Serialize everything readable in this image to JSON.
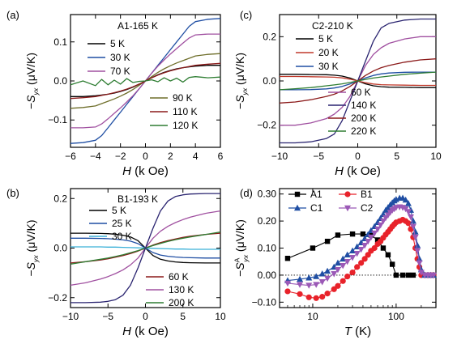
{
  "panel_d_markers": {
    "A1": "square",
    "B1": "circle",
    "C1": "triangle-up",
    "C2": "triangle-down"
  },
  "chart_data": [
    {
      "type": "line",
      "panel_label": "(a)",
      "title": "A1-165 K",
      "xlabel": "H (k Oe)",
      "ylabel": "−S_yx (μV/K)",
      "xlim": [
        -6,
        6
      ],
      "ylim": [
        -0.17,
        0.17
      ],
      "xticks": [
        -6,
        -4,
        -2,
        0,
        2,
        4,
        6
      ],
      "yticks": [
        -0.1,
        0.0,
        0.1
      ],
      "xtick_labels": [
        "−6",
        "−4",
        "−2",
        "0",
        "2",
        "4",
        "6"
      ],
      "ytick_labels": [
        "−0.1",
        "0.0",
        "0.1"
      ],
      "x": [
        -6,
        -5,
        -4,
        -3.5,
        -3,
        -2.5,
        -2,
        -1.5,
        -1,
        -0.5,
        0,
        0.5,
        1,
        1.5,
        2,
        2.5,
        3,
        3.5,
        4,
        5,
        6
      ],
      "series": [
        {
          "name": "5 K",
          "color": "#000000",
          "values": [
            -0.04,
            -0.04,
            -0.038,
            -0.036,
            -0.034,
            -0.031,
            -0.027,
            -0.022,
            -0.016,
            -0.008,
            0.0,
            0.008,
            0.016,
            0.022,
            0.027,
            0.031,
            0.034,
            0.036,
            0.038,
            0.04,
            0.04
          ]
        },
        {
          "name": "30 K",
          "color": "#1f4ea3",
          "values": [
            -0.16,
            -0.158,
            -0.152,
            -0.14,
            -0.12,
            -0.1,
            -0.08,
            -0.06,
            -0.04,
            -0.02,
            0.0,
            0.02,
            0.04,
            0.06,
            0.08,
            0.1,
            0.12,
            0.14,
            0.152,
            0.158,
            0.16
          ]
        },
        {
          "name": "70 K",
          "color": "#a050a0",
          "values": [
            -0.12,
            -0.12,
            -0.118,
            -0.11,
            -0.097,
            -0.083,
            -0.069,
            -0.054,
            -0.038,
            -0.02,
            0.0,
            0.02,
            0.038,
            0.054,
            0.069,
            0.083,
            0.097,
            0.11,
            0.118,
            0.12,
            0.12
          ]
        },
        {
          "name": "90 K",
          "color": "#6e6e2a",
          "values": [
            -0.07,
            -0.068,
            -0.064,
            -0.058,
            -0.052,
            -0.046,
            -0.039,
            -0.031,
            -0.022,
            -0.011,
            0.0,
            0.011,
            0.022,
            0.031,
            0.039,
            0.046,
            0.052,
            0.058,
            0.064,
            0.068,
            0.07
          ]
        },
        {
          "name": "110 K",
          "color": "#8b1a1a",
          "values": [
            -0.045,
            -0.043,
            -0.04,
            -0.037,
            -0.034,
            -0.03,
            -0.026,
            -0.021,
            -0.015,
            -0.008,
            0.0,
            0.008,
            0.015,
            0.021,
            0.026,
            0.03,
            0.034,
            0.037,
            0.04,
            0.043,
            0.045
          ]
        },
        {
          "name": "120 K",
          "color": "#2e7d32",
          "values": [
            -0.01,
            0.0,
            -0.012,
            0.004,
            -0.01,
            0.002,
            -0.008,
            0.006,
            -0.004,
            -0.001,
            0.0,
            0.003,
            -0.002,
            0.008,
            0.0,
            0.007,
            -0.003,
            0.009,
            0.011,
            0.008,
            0.01
          ]
        }
      ]
    },
    {
      "type": "line",
      "panel_label": "(b)",
      "title": "B1-193 K",
      "xlabel": "H (k Oe)",
      "ylabel": "−S_yx (μV/K)",
      "xlim": [
        -10,
        10
      ],
      "ylim": [
        -0.24,
        0.24
      ],
      "xticks": [
        -10,
        -5,
        0,
        5,
        10
      ],
      "yticks": [
        -0.2,
        0.0,
        0.2
      ],
      "xtick_labels": [
        "−10",
        "−5",
        "0",
        "5",
        "10"
      ],
      "ytick_labels": [
        "−0.2",
        "0.0",
        "0.2"
      ],
      "x": [
        -10,
        -8,
        -6,
        -5,
        -4,
        -3,
        -2,
        -1,
        0,
        1,
        2,
        3,
        4,
        5,
        6,
        8,
        10
      ],
      "series": [
        {
          "name": "5 K",
          "color": "#000000",
          "values": [
            0.06,
            0.06,
            0.059,
            0.058,
            0.056,
            0.052,
            0.045,
            0.03,
            0.0,
            -0.03,
            -0.045,
            -0.052,
            -0.056,
            -0.058,
            -0.059,
            -0.06,
            -0.06
          ]
        },
        {
          "name": "25 K",
          "color": "#1f4ea3",
          "values": [
            0.04,
            0.04,
            0.039,
            0.038,
            0.036,
            0.033,
            0.028,
            0.018,
            0.0,
            -0.018,
            -0.028,
            -0.033,
            -0.036,
            -0.038,
            -0.039,
            -0.04,
            -0.04
          ]
        },
        {
          "name": "30 K",
          "color": "#3ab0d8",
          "values": [
            0.005,
            0.005,
            0.005,
            0.004,
            0.004,
            0.003,
            0.002,
            0.001,
            0.0,
            -0.001,
            -0.002,
            -0.003,
            -0.004,
            -0.004,
            -0.005,
            -0.005,
            -0.005
          ]
        },
        {
          "name": "60 K",
          "color": "#8b1a1a",
          "values": [
            -0.06,
            -0.055,
            -0.048,
            -0.043,
            -0.037,
            -0.03,
            -0.022,
            -0.012,
            0.0,
            0.012,
            0.022,
            0.03,
            0.037,
            0.043,
            0.048,
            0.055,
            0.06
          ]
        },
        {
          "name": "130 K",
          "color": "#a050a0",
          "values": [
            -0.15,
            -0.14,
            -0.125,
            -0.115,
            -0.103,
            -0.088,
            -0.068,
            -0.04,
            0.0,
            0.04,
            0.068,
            0.088,
            0.103,
            0.115,
            0.125,
            0.14,
            0.15
          ]
        },
        {
          "name": "200 K",
          "color": "#2e7d32",
          "values": [
            -0.065,
            -0.055,
            -0.045,
            -0.04,
            -0.034,
            -0.027,
            -0.019,
            -0.01,
            0.0,
            0.01,
            0.019,
            0.027,
            0.034,
            0.04,
            0.045,
            0.055,
            0.065
          ]
        },
        {
          "name": "",
          "color": "#2a2470",
          "values": [
            -0.22,
            -0.22,
            -0.218,
            -0.215,
            -0.208,
            -0.19,
            -0.15,
            -0.08,
            0.0,
            0.08,
            0.15,
            0.19,
            0.208,
            0.215,
            0.218,
            0.22,
            0.22
          ]
        }
      ]
    },
    {
      "type": "line",
      "panel_label": "(c)",
      "title": "C2-210 K",
      "xlabel": "H (k Oe)",
      "ylabel": "−S_yx (μV/K)",
      "xlim": [
        -10,
        10
      ],
      "ylim": [
        -0.3,
        0.3
      ],
      "xticks": [
        -10,
        -5,
        0,
        5,
        10
      ],
      "yticks": [
        -0.2,
        0.0,
        0.2
      ],
      "xtick_labels": [
        "−10",
        "−5",
        "0",
        "5",
        "10"
      ],
      "ytick_labels": [
        "−0.2",
        "0.0",
        "0.2"
      ],
      "x": [
        -10,
        -8,
        -6,
        -4,
        -3,
        -2,
        -1,
        0,
        1,
        2,
        3,
        4,
        6,
        8,
        10
      ],
      "series": [
        {
          "name": "5 K",
          "color": "#000000",
          "values": [
            0.03,
            0.03,
            0.029,
            0.028,
            0.026,
            0.022,
            0.013,
            0.0,
            -0.013,
            -0.022,
            -0.026,
            -0.028,
            -0.029,
            -0.03,
            -0.03
          ]
        },
        {
          "name": "20 K",
          "color": "#c0392b",
          "values": [
            0.02,
            0.02,
            0.019,
            0.018,
            0.017,
            0.014,
            0.008,
            0.0,
            -0.008,
            -0.014,
            -0.017,
            -0.018,
            -0.019,
            -0.02,
            -0.02
          ]
        },
        {
          "name": "30 K",
          "color": "#1f4ea3",
          "values": [
            -0.04,
            -0.04,
            -0.039,
            -0.036,
            -0.032,
            -0.025,
            -0.014,
            0.0,
            0.014,
            0.025,
            0.032,
            0.036,
            0.039,
            0.04,
            0.04
          ]
        },
        {
          "name": "60 K",
          "color": "#a050a0",
          "values": [
            -0.2,
            -0.2,
            -0.19,
            -0.17,
            -0.15,
            -0.12,
            -0.07,
            0.0,
            0.07,
            0.12,
            0.15,
            0.17,
            0.19,
            0.2,
            0.2
          ]
        },
        {
          "name": "140 K",
          "color": "#2a2470",
          "values": [
            -0.28,
            -0.28,
            -0.275,
            -0.26,
            -0.24,
            -0.18,
            -0.09,
            0.0,
            0.09,
            0.18,
            0.24,
            0.26,
            0.275,
            0.28,
            0.28
          ]
        },
        {
          "name": "200 K",
          "color": "#8b1a1a",
          "values": [
            -0.1,
            -0.095,
            -0.085,
            -0.07,
            -0.06,
            -0.045,
            -0.025,
            0.0,
            0.025,
            0.045,
            0.06,
            0.07,
            0.085,
            0.095,
            0.1
          ]
        },
        {
          "name": "220 K",
          "color": "#2e7d32",
          "values": [
            -0.04,
            -0.035,
            -0.03,
            -0.022,
            -0.018,
            -0.013,
            -0.007,
            0.0,
            0.007,
            0.013,
            0.018,
            0.022,
            0.03,
            0.035,
            0.04
          ]
        }
      ]
    },
    {
      "type": "scatter",
      "panel_label": "(d)",
      "xlabel": "T (K)",
      "ylabel": "−S^A_yx (μV/K)",
      "xscale": "log",
      "xlim": [
        4,
        300
      ],
      "ylim": [
        -0.12,
        0.32
      ],
      "xticks": [
        10,
        100
      ],
      "yticks": [
        -0.1,
        0.0,
        0.1,
        0.2,
        0.3
      ],
      "xtick_labels": [
        "10",
        "100"
      ],
      "ytick_labels": [
        "−0.10",
        "0.00",
        "0.10",
        "0.20",
        "0.30"
      ],
      "reference_line": 0.0,
      "series": [
        {
          "name": "A1",
          "color": "#000000",
          "marker": "square",
          "x": [
            5,
            10,
            15,
            20,
            30,
            40,
            50,
            60,
            70,
            80,
            90,
            100,
            120,
            140,
            160
          ],
          "values": [
            0.062,
            0.1,
            0.125,
            0.148,
            0.152,
            0.152,
            0.148,
            0.13,
            0.1,
            0.075,
            0.04,
            0.0,
            0.0,
            0.0,
            0.0
          ]
        },
        {
          "name": "B1",
          "color": "#e8222a",
          "marker": "circle",
          "x": [
            5,
            7,
            9,
            11,
            13,
            15,
            18,
            20,
            23,
            26,
            30,
            34,
            38,
            42,
            46,
            50,
            55,
            60,
            65,
            70,
            75,
            80,
            85,
            90,
            95,
            100,
            110,
            120,
            130,
            140,
            150,
            160,
            170,
            180,
            190,
            200,
            220,
            240,
            260,
            280
          ],
          "values": [
            -0.06,
            -0.07,
            -0.082,
            -0.085,
            -0.08,
            -0.068,
            -0.052,
            -0.04,
            -0.022,
            -0.005,
            0.01,
            0.03,
            0.045,
            0.06,
            0.075,
            0.09,
            0.1,
            0.115,
            0.125,
            0.138,
            0.15,
            0.16,
            0.17,
            0.18,
            0.188,
            0.195,
            0.2,
            0.205,
            0.2,
            0.192,
            0.17,
            0.14,
            0.1,
            0.06,
            0.03,
            0.0,
            0.0,
            0.0,
            0.0,
            0.0
          ]
        },
        {
          "name": "C1",
          "color": "#1f4ea3",
          "marker": "triangle-up",
          "x": [
            5,
            7,
            9,
            11,
            13,
            15,
            18,
            20,
            23,
            26,
            30,
            34,
            38,
            42,
            46,
            50,
            55,
            60,
            65,
            70,
            75,
            80,
            85,
            90,
            95,
            100,
            110,
            120,
            130,
            140,
            150,
            160,
            170,
            180,
            190,
            200,
            220,
            240,
            260,
            280
          ],
          "values": [
            -0.02,
            -0.015,
            -0.01,
            -0.005,
            0.005,
            0.015,
            0.03,
            0.045,
            0.06,
            0.075,
            0.09,
            0.105,
            0.12,
            0.135,
            0.15,
            0.165,
            0.18,
            0.195,
            0.21,
            0.225,
            0.24,
            0.25,
            0.26,
            0.268,
            0.275,
            0.28,
            0.285,
            0.285,
            0.278,
            0.265,
            0.24,
            0.2,
            0.16,
            0.11,
            0.06,
            0.02,
            0.0,
            0.0,
            0.0,
            0.0
          ]
        },
        {
          "name": "C2",
          "color": "#9b59b6",
          "marker": "triangle-down",
          "x": [
            5,
            7,
            9,
            11,
            13,
            15,
            18,
            20,
            23,
            26,
            30,
            34,
            38,
            42,
            46,
            50,
            55,
            60,
            65,
            70,
            75,
            80,
            85,
            90,
            95,
            100,
            110,
            120,
            130,
            140,
            150,
            160,
            170,
            180,
            190,
            200,
            220,
            240,
            260,
            280
          ],
          "values": [
            -0.03,
            -0.035,
            -0.038,
            -0.035,
            -0.025,
            -0.012,
            0.005,
            0.02,
            0.035,
            0.05,
            0.065,
            0.08,
            0.095,
            0.11,
            0.125,
            0.14,
            0.155,
            0.17,
            0.185,
            0.2,
            0.212,
            0.222,
            0.232,
            0.24,
            0.245,
            0.25,
            0.252,
            0.25,
            0.245,
            0.235,
            0.215,
            0.18,
            0.14,
            0.09,
            0.045,
            0.01,
            0.0,
            0.0,
            0.0,
            0.0
          ]
        }
      ]
    }
  ]
}
